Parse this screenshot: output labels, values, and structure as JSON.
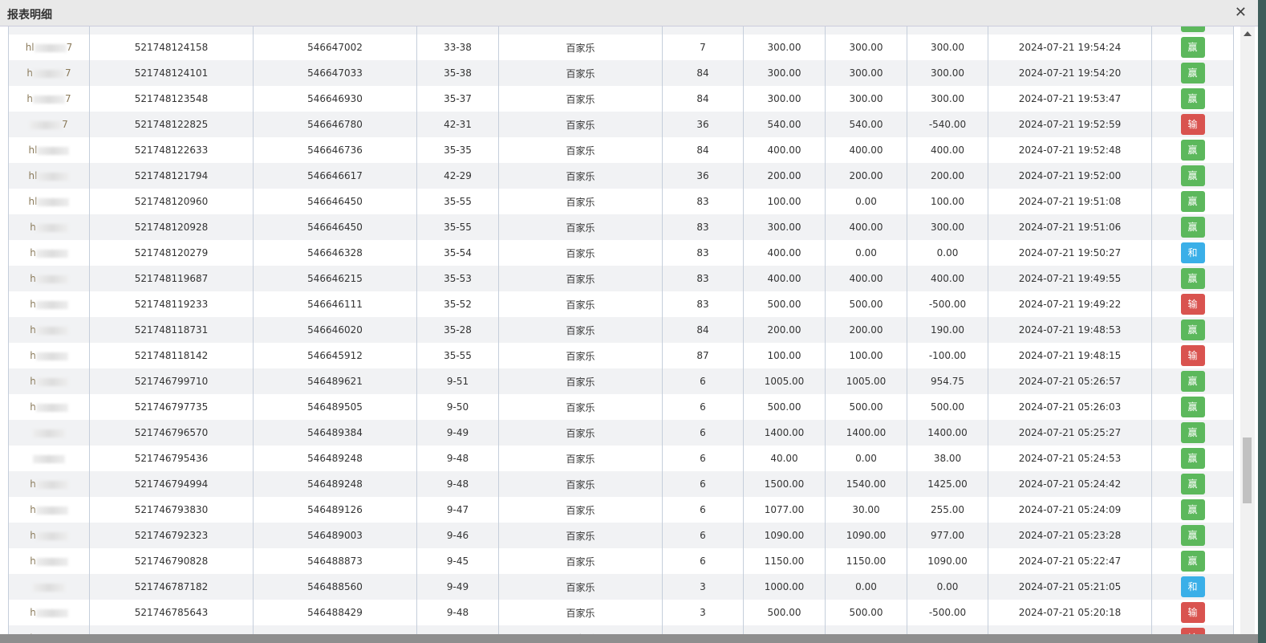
{
  "window": {
    "title": "报表明细",
    "close_icon": "close-icon"
  },
  "badge_colors": {
    "赢": "#5cb85c",
    "输": "#d9534f",
    "和": "#3aafe8"
  },
  "rows": [
    {
      "user_prefix": "",
      "user_suffix": "",
      "bet_id": "",
      "round_id": "",
      "table": "",
      "game": "",
      "num": "",
      "bet": "",
      "valid": "",
      "payout": "",
      "time": "",
      "result": "赢"
    },
    {
      "user_prefix": "hl",
      "user_suffix": "7",
      "bet_id": "521748124158",
      "round_id": "546647002",
      "table": "33-38",
      "game": "百家乐",
      "num": "7",
      "bet": "300.00",
      "valid": "300.00",
      "payout": "300.00",
      "time": "2024-07-21 19:54:24",
      "result": "赢"
    },
    {
      "user_prefix": "h",
      "user_suffix": "7",
      "bet_id": "521748124101",
      "round_id": "546647033",
      "table": "35-38",
      "game": "百家乐",
      "num": "84",
      "bet": "300.00",
      "valid": "300.00",
      "payout": "300.00",
      "time": "2024-07-21 19:54:20",
      "result": "赢"
    },
    {
      "user_prefix": "h",
      "user_suffix": "7",
      "bet_id": "521748123548",
      "round_id": "546646930",
      "table": "35-37",
      "game": "百家乐",
      "num": "84",
      "bet": "300.00",
      "valid": "300.00",
      "payout": "300.00",
      "time": "2024-07-21 19:53:47",
      "result": "赢"
    },
    {
      "user_prefix": "",
      "user_suffix": "7",
      "bet_id": "521748122825",
      "round_id": "546646780",
      "table": "42-31",
      "game": "百家乐",
      "num": "36",
      "bet": "540.00",
      "valid": "540.00",
      "payout": "-540.00",
      "time": "2024-07-21 19:52:59",
      "result": "输"
    },
    {
      "user_prefix": "hl",
      "user_suffix": "",
      "bet_id": "521748122633",
      "round_id": "546646736",
      "table": "35-35",
      "game": "百家乐",
      "num": "84",
      "bet": "400.00",
      "valid": "400.00",
      "payout": "400.00",
      "time": "2024-07-21 19:52:48",
      "result": "赢"
    },
    {
      "user_prefix": "hl",
      "user_suffix": "",
      "bet_id": "521748121794",
      "round_id": "546646617",
      "table": "42-29",
      "game": "百家乐",
      "num": "36",
      "bet": "200.00",
      "valid": "200.00",
      "payout": "200.00",
      "time": "2024-07-21 19:52:00",
      "result": "赢"
    },
    {
      "user_prefix": "hl",
      "user_suffix": "",
      "bet_id": "521748120960",
      "round_id": "546646450",
      "table": "35-55",
      "game": "百家乐",
      "num": "83",
      "bet": "100.00",
      "valid": "0.00",
      "payout": "100.00",
      "time": "2024-07-21 19:51:08",
      "result": "赢"
    },
    {
      "user_prefix": "h",
      "user_suffix": "",
      "bet_id": "521748120928",
      "round_id": "546646450",
      "table": "35-55",
      "game": "百家乐",
      "num": "83",
      "bet": "300.00",
      "valid": "400.00",
      "payout": "300.00",
      "time": "2024-07-21 19:51:06",
      "result": "赢"
    },
    {
      "user_prefix": "h",
      "user_suffix": "",
      "bet_id": "521748120279",
      "round_id": "546646328",
      "table": "35-54",
      "game": "百家乐",
      "num": "83",
      "bet": "400.00",
      "valid": "0.00",
      "payout": "0.00",
      "time": "2024-07-21 19:50:27",
      "result": "和"
    },
    {
      "user_prefix": "h",
      "user_suffix": "",
      "bet_id": "521748119687",
      "round_id": "546646215",
      "table": "35-53",
      "game": "百家乐",
      "num": "83",
      "bet": "400.00",
      "valid": "400.00",
      "payout": "400.00",
      "time": "2024-07-21 19:49:55",
      "result": "赢"
    },
    {
      "user_prefix": "h",
      "user_suffix": "",
      "bet_id": "521748119233",
      "round_id": "546646111",
      "table": "35-52",
      "game": "百家乐",
      "num": "83",
      "bet": "500.00",
      "valid": "500.00",
      "payout": "-500.00",
      "time": "2024-07-21 19:49:22",
      "result": "输"
    },
    {
      "user_prefix": "h",
      "user_suffix": "",
      "bet_id": "521748118731",
      "round_id": "546646020",
      "table": "35-28",
      "game": "百家乐",
      "num": "84",
      "bet": "200.00",
      "valid": "200.00",
      "payout": "190.00",
      "time": "2024-07-21 19:48:53",
      "result": "赢"
    },
    {
      "user_prefix": "h",
      "user_suffix": "",
      "bet_id": "521748118142",
      "round_id": "546645912",
      "table": "35-55",
      "game": "百家乐",
      "num": "87",
      "bet": "100.00",
      "valid": "100.00",
      "payout": "-100.00",
      "time": "2024-07-21 19:48:15",
      "result": "输"
    },
    {
      "user_prefix": "h",
      "user_suffix": "",
      "bet_id": "521746799710",
      "round_id": "546489621",
      "table": "9-51",
      "game": "百家乐",
      "num": "6",
      "bet": "1005.00",
      "valid": "1005.00",
      "payout": "954.75",
      "time": "2024-07-21 05:26:57",
      "result": "赢"
    },
    {
      "user_prefix": "h",
      "user_suffix": "",
      "bet_id": "521746797735",
      "round_id": "546489505",
      "table": "9-50",
      "game": "百家乐",
      "num": "6",
      "bet": "500.00",
      "valid": "500.00",
      "payout": "500.00",
      "time": "2024-07-21 05:26:03",
      "result": "赢"
    },
    {
      "user_prefix": "",
      "user_suffix": "",
      "bet_id": "521746796570",
      "round_id": "546489384",
      "table": "9-49",
      "game": "百家乐",
      "num": "6",
      "bet": "1400.00",
      "valid": "1400.00",
      "payout": "1400.00",
      "time": "2024-07-21 05:25:27",
      "result": "赢"
    },
    {
      "user_prefix": "",
      "user_suffix": "",
      "bet_id": "521746795436",
      "round_id": "546489248",
      "table": "9-48",
      "game": "百家乐",
      "num": "6",
      "bet": "40.00",
      "valid": "0.00",
      "payout": "38.00",
      "time": "2024-07-21 05:24:53",
      "result": "赢"
    },
    {
      "user_prefix": "h",
      "user_suffix": "",
      "bet_id": "521746794994",
      "round_id": "546489248",
      "table": "9-48",
      "game": "百家乐",
      "num": "6",
      "bet": "1500.00",
      "valid": "1540.00",
      "payout": "1425.00",
      "time": "2024-07-21 05:24:42",
      "result": "赢"
    },
    {
      "user_prefix": "h",
      "user_suffix": "",
      "bet_id": "521746793830",
      "round_id": "546489126",
      "table": "9-47",
      "game": "百家乐",
      "num": "6",
      "bet": "1077.00",
      "valid": "30.00",
      "payout": "255.00",
      "time": "2024-07-21 05:24:09",
      "result": "赢"
    },
    {
      "user_prefix": "h",
      "user_suffix": "",
      "bet_id": "521746792323",
      "round_id": "546489003",
      "table": "9-46",
      "game": "百家乐",
      "num": "6",
      "bet": "1090.00",
      "valid": "1090.00",
      "payout": "977.00",
      "time": "2024-07-21 05:23:28",
      "result": "赢"
    },
    {
      "user_prefix": "h",
      "user_suffix": "",
      "bet_id": "521746790828",
      "round_id": "546488873",
      "table": "9-45",
      "game": "百家乐",
      "num": "6",
      "bet": "1150.00",
      "valid": "1150.00",
      "payout": "1090.00",
      "time": "2024-07-21 05:22:47",
      "result": "赢"
    },
    {
      "user_prefix": "",
      "user_suffix": "",
      "bet_id": "521746787182",
      "round_id": "546488560",
      "table": "9-49",
      "game": "百家乐",
      "num": "3",
      "bet": "1000.00",
      "valid": "0.00",
      "payout": "0.00",
      "time": "2024-07-21 05:21:05",
      "result": "和"
    },
    {
      "user_prefix": "h",
      "user_suffix": "",
      "bet_id": "521746785643",
      "round_id": "546488429",
      "table": "9-48",
      "game": "百家乐",
      "num": "3",
      "bet": "500.00",
      "valid": "500.00",
      "payout": "-500.00",
      "time": "2024-07-21 05:20:18",
      "result": "输"
    },
    {
      "user_prefix": "h",
      "user_suffix": "",
      "bet_id": "",
      "round_id": "",
      "table": "",
      "game": "百家乐",
      "num": "",
      "bet": "",
      "valid": "",
      "payout": "",
      "time": "",
      "result": "输"
    }
  ]
}
